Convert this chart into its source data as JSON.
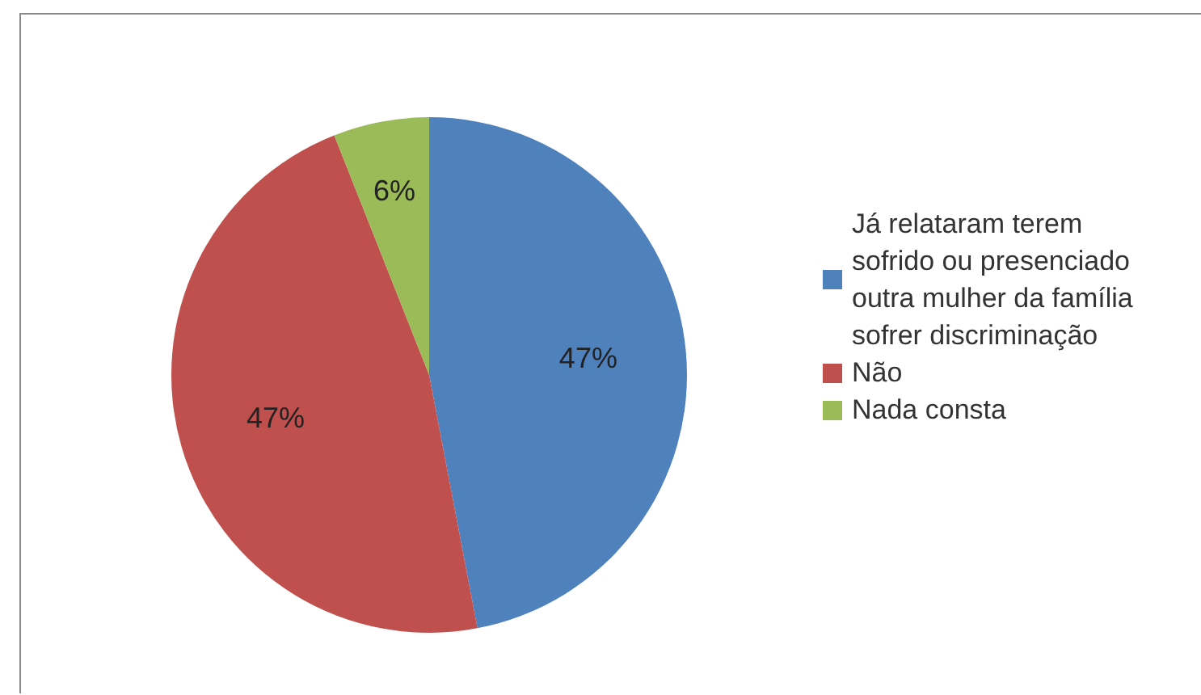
{
  "chart_data": {
    "type": "pie",
    "categories": [
      "Já relataram terem sofrido ou presenciado outra mulher da família sofrer discriminação",
      "Não",
      "Nada consta"
    ],
    "values": [
      47,
      47,
      6
    ],
    "colors": [
      "#4f81bd",
      "#c0504d",
      "#9bbb59"
    ],
    "value_labels": [
      "47%",
      "47%",
      "6%"
    ],
    "legend": "right"
  }
}
